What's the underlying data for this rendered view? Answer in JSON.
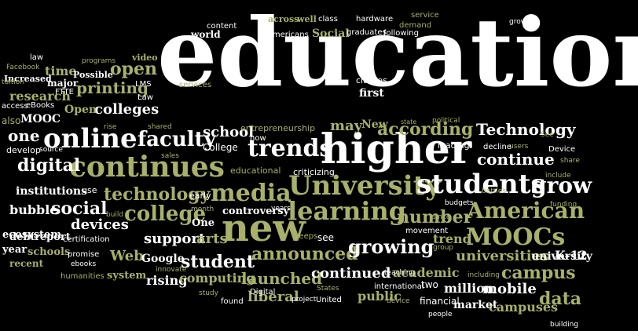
{
  "palette": {
    "background": "#000000",
    "white": "#ffffff",
    "olive_light": "#a8b06a",
    "olive_dark": "#8a9040",
    "grey": "#d8d8d8"
  },
  "words": [
    [
      "education",
      200,
      8,
      120,
      "c1",
      "serif"
    ],
    [
      "higher",
      408,
      165,
      52,
      "c1",
      "serif"
    ],
    [
      "continues",
      88,
      195,
      36,
      "c2",
      "serif"
    ],
    [
      "online",
      55,
      160,
      34,
      "c1",
      "serif"
    ],
    [
      "new",
      282,
      267,
      48,
      "c2",
      "serif"
    ],
    [
      "University",
      367,
      220,
      34,
      "c2",
      "serif"
    ],
    [
      "students",
      530,
      218,
      34,
      "c1",
      "serif"
    ],
    [
      "learning",
      366,
      253,
      32,
      "c2",
      "serif"
    ],
    [
      "trends",
      315,
      175,
      30,
      "c1",
      "serif"
    ],
    [
      "media",
      268,
      232,
      30,
      "c2",
      "serif"
    ],
    [
      "American",
      594,
      255,
      28,
      "c2",
      "serif"
    ],
    [
      "MOOCs",
      593,
      288,
      30,
      "c2",
      "serif"
    ],
    [
      "grow",
      676,
      223,
      28,
      "c1",
      "serif"
    ],
    [
      "college",
      158,
      260,
      26,
      "c2",
      "serif"
    ],
    [
      "faculty",
      175,
      165,
      26,
      "c1",
      "serif"
    ],
    [
      "student",
      230,
      323,
      22,
      "c1",
      "serif"
    ],
    [
      "announced",
      320,
      313,
      22,
      "c2",
      "serif"
    ],
    [
      "growing",
      443,
      303,
      24,
      "c1",
      "serif"
    ],
    [
      "number",
      505,
      266,
      22,
      "c2",
      "serif"
    ],
    [
      "digital",
      22,
      200,
      22,
      "c1",
      "serif"
    ],
    [
      "technology",
      132,
      237,
      22,
      "c2",
      "serif"
    ],
    [
      "social",
      65,
      255,
      22,
      "c1",
      "serif"
    ],
    [
      "open",
      140,
      77,
      22,
      "c2",
      "serif"
    ],
    [
      "printing",
      97,
      102,
      20,
      "c2",
      "serif"
    ],
    [
      "colleges",
      120,
      131,
      18,
      "c1",
      "serif"
    ],
    [
      "research",
      12,
      115,
      16,
      "c2",
      "serif"
    ],
    [
      "one",
      10,
      163,
      20,
      "c1",
      "serif"
    ],
    [
      "according",
      480,
      154,
      22,
      "c2",
      "serif"
    ],
    [
      "Technology",
      606,
      155,
      20,
      "c1",
      "serif"
    ],
    [
      "continue",
      607,
      193,
      20,
      "c1",
      "serif"
    ],
    [
      "campus",
      638,
      337,
      22,
      "c2",
      "serif"
    ],
    [
      "data",
      686,
      370,
      22,
      "c2",
      "serif"
    ],
    [
      "launched",
      307,
      345,
      20,
      "c2",
      "serif"
    ],
    [
      "liberal",
      315,
      370,
      18,
      "c2",
      "serif"
    ],
    [
      "continued",
      396,
      340,
      18,
      "c1",
      "serif"
    ],
    [
      "universities",
      580,
      318,
      18,
      "c2",
      "serif"
    ],
    [
      "mobile",
      614,
      360,
      18,
      "c1",
      "serif"
    ],
    [
      "campuses",
      622,
      384,
      16,
      "c2",
      "serif"
    ],
    [
      "million",
      565,
      360,
      16,
      "c1",
      "serif"
    ],
    [
      "school",
      258,
      160,
      18,
      "c1",
      "serif"
    ],
    [
      "devices",
      90,
      278,
      18,
      "c1",
      "serif"
    ],
    [
      "support",
      183,
      296,
      18,
      "c1",
      "serif"
    ],
    [
      "arts",
      250,
      296,
      18,
      "c2",
      "serif"
    ],
    [
      "Web",
      140,
      318,
      18,
      "c2",
      "serif"
    ],
    [
      "rising",
      186,
      350,
      16,
      "c1",
      "serif"
    ],
    [
      "computing",
      228,
      347,
      16,
      "c2",
      "serif"
    ],
    [
      "public",
      455,
      370,
      16,
      "c2",
      "serif"
    ],
    [
      "academic",
      500,
      340,
      16,
      "c2",
      "serif"
    ],
    [
      "trend",
      551,
      297,
      16,
      "c2",
      "serif"
    ],
    [
      "market",
      577,
      382,
      14,
      "c1",
      "serif"
    ],
    [
      "time",
      57,
      83,
      16,
      "c2",
      "serif"
    ],
    [
      "MOOC",
      26,
      145,
      14,
      "c1",
      "serif"
    ],
    [
      "Open",
      82,
      133,
      14,
      "c2",
      "serif"
    ],
    [
      "may",
      420,
      152,
      18,
      "c2",
      "serif"
    ],
    [
      "New",
      460,
      152,
      14,
      "c2",
      "serif"
    ],
    [
      "first",
      457,
      112,
      14,
      "c1",
      "serif"
    ],
    [
      "Social",
      397,
      36,
      14,
      "c2",
      "serif"
    ],
    [
      "bubble",
      12,
      260,
      16,
      "c1",
      "serif"
    ],
    [
      "institutions",
      20,
      237,
      14,
      "c1",
      "serif"
    ],
    [
      "ecosystem",
      3,
      293,
      13,
      "c1",
      "serif"
    ],
    [
      "report",
      44,
      296,
      13,
      "c1",
      "serif"
    ],
    [
      "year",
      3,
      312,
      13,
      "c1",
      "serif"
    ],
    [
      "schools",
      35,
      315,
      13,
      "c2",
      "serif"
    ],
    [
      "debt",
      12,
      296,
      13,
      "c1",
      "serif"
    ],
    [
      "recent",
      12,
      330,
      12,
      "c2",
      "serif"
    ],
    [
      "Google",
      180,
      323,
      14,
      "c1",
      "serif"
    ],
    [
      "One",
      244,
      278,
      13,
      "c1",
      "serif"
    ],
    [
      "controversy",
      283,
      263,
      13,
      "c1",
      "serif"
    ],
    [
      "system",
      136,
      345,
      13,
      "c2",
      "serif"
    ],
    [
      "K-12",
      706,
      318,
      16,
      "c1",
      "serif"
    ],
    [
      "university",
      676,
      320,
      14,
      "c1",
      "serif"
    ],
    [
      "world",
      243,
      38,
      12,
      "c1",
      "serif"
    ],
    [
      "major",
      60,
      100,
      12,
      "c1",
      "serif"
    ],
    [
      "Increased",
      5,
      95,
      11,
      "c1",
      "serif"
    ],
    [
      "Possible",
      93,
      90,
      11,
      "c1",
      "serif"
    ],
    [
      "video",
      168,
      68,
      11,
      "c2",
      "serif"
    ],
    [
      "across",
      341,
      19,
      11,
      "c2",
      "serif"
    ],
    [
      "well",
      378,
      19,
      11,
      "c2",
      "serif"
    ],
    [
      "class",
      405,
      20,
      10,
      "c1",
      "sans"
    ],
    [
      "hardware",
      453,
      20,
      10,
      "c1",
      "sans"
    ],
    [
      "service",
      523,
      15,
      10,
      "c2",
      "sans"
    ],
    [
      "demand",
      508,
      28,
      10,
      "c2",
      "sans"
    ],
    [
      "following",
      488,
      38,
      10,
      "c1",
      "sans"
    ],
    [
      "growth",
      648,
      24,
      9,
      "c1",
      "sans"
    ],
    [
      "graduates",
      441,
      37,
      10,
      "c1",
      "sans"
    ],
    [
      "Americans",
      340,
      40,
      10,
      "c1",
      "sans"
    ],
    [
      "content",
      263,
      29,
      10,
      "c1",
      "sans"
    ],
    [
      "law",
      38,
      69,
      10,
      "c1",
      "sans"
    ],
    [
      "Facebook",
      8,
      82,
      9,
      "c2",
      "sans"
    ],
    [
      "tuition",
      2,
      101,
      9,
      "c2",
      "sans"
    ],
    [
      "FTTE",
      70,
      113,
      10,
      "c1",
      "sans"
    ],
    [
      "programs",
      104,
      74,
      9,
      "c2",
      "sans"
    ],
    [
      "LMS",
      172,
      103,
      10,
      "c1",
      "sans"
    ],
    [
      "Law",
      175,
      120,
      10,
      "c1",
      "sans"
    ],
    [
      "eBooks",
      33,
      130,
      10,
      "c1",
      "sans"
    ],
    [
      "access",
      2,
      131,
      10,
      "c1",
      "sans"
    ],
    [
      "also",
      2,
      148,
      12,
      "c2",
      "sans"
    ],
    [
      "develop",
      8,
      186,
      11,
      "c1",
      "sans"
    ],
    [
      "rise",
      132,
      158,
      9,
      "c2",
      "sans"
    ],
    [
      "shared",
      188,
      158,
      9,
      "c2",
      "sans"
    ],
    [
      "source",
      50,
      187,
      9,
      "c1",
      "sans"
    ],
    [
      "sales",
      205,
      195,
      9,
      "c2",
      "sans"
    ],
    [
      "College",
      258,
      182,
      12,
      "c1",
      "sans"
    ],
    [
      "now",
      318,
      172,
      10,
      "c1",
      "sans"
    ],
    [
      "entrepreneurship",
      306,
      158,
      11,
      "c2",
      "sans"
    ],
    [
      "services",
      228,
      104,
      10,
      "c2",
      "sans"
    ],
    [
      "classes",
      453,
      97,
      11,
      "c1",
      "sans"
    ],
    [
      "state",
      510,
      152,
      8,
      "c2",
      "sans"
    ],
    [
      "political",
      550,
      150,
      9,
      "c2",
      "sans"
    ],
    [
      "users",
      648,
      183,
      9,
      "c2",
      "sans"
    ],
    [
      "decline",
      615,
      183,
      10,
      "c1",
      "sans"
    ],
    [
      "leading",
      557,
      180,
      11,
      "c1",
      "sans"
    ],
    [
      "See",
      688,
      168,
      9,
      "c2",
      "sans"
    ],
    [
      "Device",
      698,
      186,
      10,
      "c1",
      "sans"
    ],
    [
      "share",
      713,
      201,
      9,
      "c2",
      "sans"
    ],
    [
      "include",
      694,
      220,
      9,
      "c2",
      "sans"
    ],
    [
      "funding",
      700,
      257,
      9,
      "c2",
      "sans"
    ],
    [
      "educational",
      293,
      212,
      11,
      "c2",
      "sans"
    ],
    [
      "criticizing",
      373,
      214,
      11,
      "c1",
      "sans"
    ],
    [
      "use",
      104,
      237,
      11,
      "c1",
      "sans"
    ],
    [
      "early",
      241,
      244,
      11,
      "c1",
      "sans"
    ],
    [
      "build",
      135,
      270,
      9,
      "c2",
      "sans"
    ],
    [
      "month",
      243,
      263,
      9,
      "c2",
      "sans"
    ],
    [
      "years",
      345,
      262,
      9,
      "c1",
      "sans"
    ],
    [
      "budgets",
      566,
      255,
      9,
      "c1",
      "sans"
    ],
    [
      "since",
      550,
      273,
      9,
      "c2",
      "sans"
    ],
    [
      "battles",
      613,
      240,
      9,
      "c2",
      "sans"
    ],
    [
      "keeps",
      375,
      297,
      10,
      "c2",
      "sans"
    ],
    [
      "see",
      404,
      297,
      12,
      "c1",
      "sans"
    ],
    [
      "movement",
      516,
      290,
      10,
      "c1",
      "sans"
    ],
    [
      "group",
      551,
      312,
      9,
      "c2",
      "sans"
    ],
    [
      "certification",
      80,
      301,
      10,
      "c1",
      "sans"
    ],
    [
      "promise",
      86,
      320,
      10,
      "c1",
      "sans"
    ],
    [
      "ebooks",
      90,
      333,
      9,
      "c1",
      "sans"
    ],
    [
      "humanities",
      77,
      348,
      10,
      "c2",
      "sans"
    ],
    [
      "innovate",
      198,
      340,
      9,
      "c2",
      "sans"
    ],
    [
      "study",
      253,
      370,
      9,
      "c2",
      "sans"
    ],
    [
      "found",
      281,
      380,
      10,
      "c1",
      "sans"
    ],
    [
      "Digital",
      318,
      368,
      10,
      "c1",
      "sans"
    ],
    [
      "project",
      371,
      378,
      9,
      "c1",
      "sans"
    ],
    [
      "States",
      403,
      364,
      9,
      "c2",
      "sans"
    ],
    [
      "United",
      402,
      378,
      10,
      "c1",
      "sans"
    ],
    [
      "international",
      476,
      361,
      10,
      "c1",
      "sans"
    ],
    [
      "two",
      536,
      357,
      12,
      "c1",
      "sans"
    ],
    [
      "teaching",
      489,
      344,
      9,
      "c1",
      "sans"
    ],
    [
      "including",
      595,
      347,
      9,
      "c2",
      "sans"
    ],
    [
      "device",
      492,
      380,
      9,
      "c2",
      "sans"
    ],
    [
      "financial",
      534,
      378,
      12,
      "c1",
      "sans"
    ],
    [
      "people",
      545,
      397,
      9,
      "c1",
      "sans"
    ],
    [
      "building",
      700,
      410,
      9,
      "c1",
      "sans"
    ]
  ]
}
